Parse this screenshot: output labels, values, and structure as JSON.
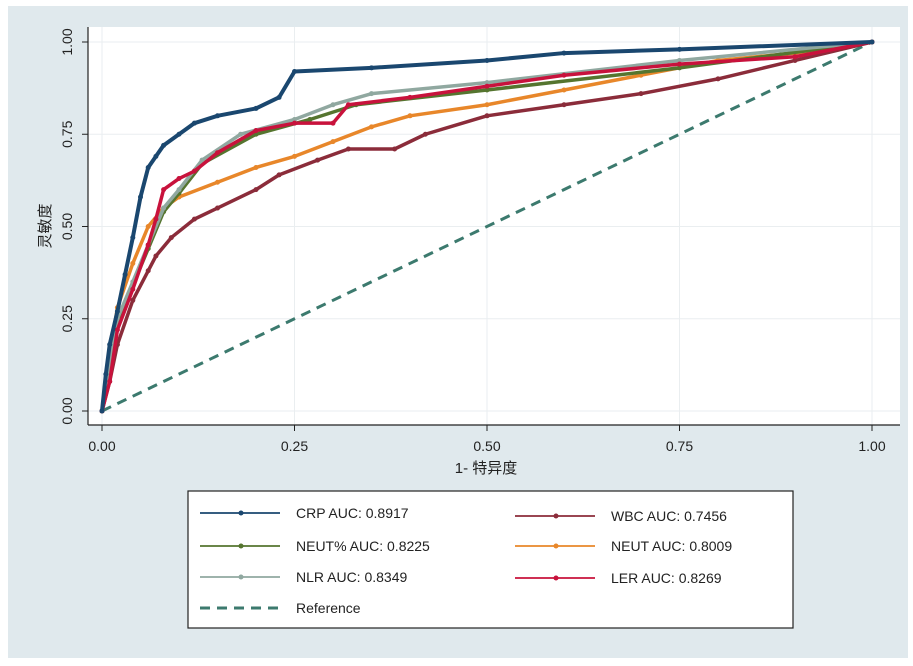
{
  "chart_data": {
    "type": "line",
    "xlabel": "1- 特异度",
    "ylabel": "灵敏度",
    "xlim": [
      0,
      1
    ],
    "ylim": [
      0,
      1
    ],
    "xticks": [
      "0.00",
      "0.25",
      "0.50",
      "0.75",
      "1.00"
    ],
    "yticks": [
      "0.00",
      "0.25",
      "0.50",
      "0.75",
      "1.00"
    ],
    "grid": true,
    "legend_position": "bottom",
    "series": [
      {
        "name": "CRP AUC: 0.8917",
        "color": "#1a476f",
        "x": [
          0,
          0.005,
          0.01,
          0.02,
          0.03,
          0.04,
          0.05,
          0.06,
          0.07,
          0.08,
          0.1,
          0.12,
          0.15,
          0.2,
          0.23,
          0.25,
          0.35,
          0.5,
          0.6,
          0.75,
          1
        ],
        "y": [
          0,
          0.1,
          0.18,
          0.27,
          0.37,
          0.47,
          0.58,
          0.66,
          0.69,
          0.72,
          0.75,
          0.78,
          0.8,
          0.82,
          0.85,
          0.92,
          0.93,
          0.95,
          0.97,
          0.98,
          1
        ]
      },
      {
        "name": "WBC AUC: 0.7456",
        "color": "#8b2c3a",
        "x": [
          0,
          0.01,
          0.02,
          0.04,
          0.06,
          0.07,
          0.09,
          0.12,
          0.15,
          0.2,
          0.23,
          0.28,
          0.32,
          0.38,
          0.42,
          0.5,
          0.6,
          0.7,
          0.8,
          0.9,
          1
        ],
        "y": [
          0,
          0.08,
          0.18,
          0.3,
          0.38,
          0.42,
          0.47,
          0.52,
          0.55,
          0.6,
          0.64,
          0.68,
          0.71,
          0.71,
          0.75,
          0.8,
          0.83,
          0.86,
          0.9,
          0.95,
          1
        ]
      },
      {
        "name": "NEUT% AUC: 0.8225",
        "color": "#55752f",
        "x": [
          0,
          0.01,
          0.02,
          0.04,
          0.06,
          0.08,
          0.1,
          0.13,
          0.2,
          0.27,
          0.33,
          0.5,
          0.75,
          1
        ],
        "y": [
          0,
          0.1,
          0.24,
          0.34,
          0.44,
          0.54,
          0.59,
          0.67,
          0.75,
          0.79,
          0.83,
          0.87,
          0.93,
          1
        ]
      },
      {
        "name": "NEUT AUC: 0.8009",
        "color": "#e8872a",
        "x": [
          0,
          0.01,
          0.02,
          0.04,
          0.06,
          0.08,
          0.1,
          0.15,
          0.2,
          0.25,
          0.3,
          0.35,
          0.4,
          0.5,
          0.6,
          0.7,
          0.8,
          0.9,
          1
        ],
        "y": [
          0,
          0.15,
          0.28,
          0.4,
          0.5,
          0.55,
          0.58,
          0.62,
          0.66,
          0.69,
          0.73,
          0.77,
          0.8,
          0.83,
          0.87,
          0.91,
          0.95,
          0.97,
          1
        ]
      },
      {
        "name": "NLR AUC: 0.8349",
        "color": "#90a8a0",
        "x": [
          0,
          0.01,
          0.02,
          0.04,
          0.06,
          0.08,
          0.1,
          0.13,
          0.18,
          0.25,
          0.3,
          0.35,
          0.5,
          0.75,
          1
        ],
        "y": [
          0,
          0.12,
          0.25,
          0.35,
          0.45,
          0.55,
          0.6,
          0.68,
          0.75,
          0.79,
          0.83,
          0.86,
          0.89,
          0.95,
          1
        ]
      },
      {
        "name": "LER AUC: 0.8269",
        "color": "#c8123c",
        "x": [
          0,
          0.01,
          0.02,
          0.04,
          0.06,
          0.07,
          0.08,
          0.1,
          0.12,
          0.15,
          0.2,
          0.25,
          0.3,
          0.32,
          0.4,
          0.5,
          0.6,
          0.75,
          0.9,
          1
        ],
        "y": [
          0,
          0.08,
          0.22,
          0.33,
          0.45,
          0.52,
          0.6,
          0.63,
          0.65,
          0.7,
          0.76,
          0.78,
          0.78,
          0.83,
          0.85,
          0.88,
          0.91,
          0.94,
          0.96,
          1
        ]
      },
      {
        "name": "Reference",
        "color": "#3c7a6e",
        "dashed": true,
        "x": [
          0,
          1
        ],
        "y": [
          0,
          1
        ]
      }
    ]
  }
}
